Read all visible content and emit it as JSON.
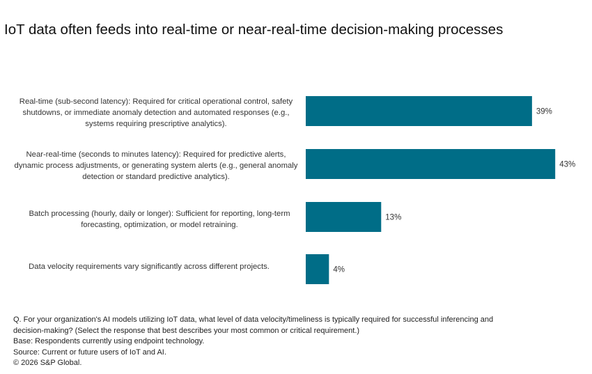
{
  "chart_data": {
    "type": "bar",
    "orientation": "horizontal",
    "title": "IoT data often feeds into real-time or near-real-time decision-making processes",
    "categories": [
      "Real-time (sub-second latency): Required for critical operational control, safety shutdowns, or immediate anomaly detection and automated responses (e.g., systems requiring prescriptive analytics).",
      "Near-real-time (seconds to minutes latency): Required for predictive alerts, dynamic process adjustments, or generating system alerts (e.g., general anomaly detection or standard predictive analytics).",
      "Batch processing (hourly, daily or longer): Sufficient for reporting, long-term forecasting, optimization, or model retraining.",
      "Data velocity requirements vary significantly across different projects."
    ],
    "values": [
      39,
      43,
      13,
      4
    ],
    "data_labels": [
      "39%",
      "43%",
      "13%",
      "4%"
    ],
    "unit": "%",
    "xlim": [
      0,
      50
    ],
    "grid": false,
    "bar_color": "#006d87"
  },
  "footnotes": [
    "Q. For your organization's AI models utilizing IoT data, what level of data velocity/timeliness is typically required for successful inferencing and",
    "decision-making? (Select the response that best describes your most common or critical requirement.)",
    "Base: Respondents currently using endpoint technology.",
    "Source: Current or future users of IoT and AI.",
    "© 2026 S&P Global."
  ]
}
